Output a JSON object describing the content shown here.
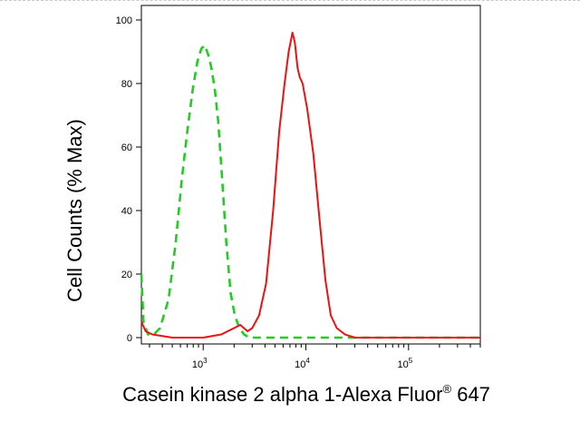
{
  "chart_data": {
    "type": "line",
    "title": "",
    "xlabel": "Casein kinase 2 alpha 1-Alexa Fluor",
    "xlabel_superscript": "®",
    "xlabel_suffix": " 647",
    "ylabel": "Cell Counts (% Max)",
    "x_scale": "log",
    "xlim": [
      250,
      500000
    ],
    "ylim": [
      0,
      100
    ],
    "y_ticks": [
      "0",
      "20",
      "40",
      "60",
      "80",
      "100"
    ],
    "x_ticks": [
      {
        "base": "10",
        "exp": "3",
        "value": 1000
      },
      {
        "base": "10",
        "exp": "4",
        "value": 10000
      },
      {
        "base": "10",
        "exp": "5",
        "value": 100000
      }
    ],
    "grid": false,
    "legend": "none",
    "series": [
      {
        "color": "#22cc22",
        "style": "dashed",
        "points": [
          [
            250,
            20
          ],
          [
            262,
            5
          ],
          [
            290,
            1
          ],
          [
            330,
            1
          ],
          [
            380,
            3
          ],
          [
            460,
            12
          ],
          [
            540,
            30
          ],
          [
            620,
            50
          ],
          [
            700,
            65
          ],
          [
            790,
            78
          ],
          [
            880,
            87
          ],
          [
            960,
            91
          ],
          [
            1040,
            92
          ],
          [
            1120,
            89
          ],
          [
            1200,
            85
          ],
          [
            1300,
            78
          ],
          [
            1400,
            68
          ],
          [
            1530,
            50
          ],
          [
            1680,
            30
          ],
          [
            1850,
            14
          ],
          [
            2030,
            7
          ],
          [
            2250,
            3
          ],
          [
            2500,
            1
          ],
          [
            2800,
            0
          ],
          [
            30000,
            0
          ],
          [
            500000,
            0
          ]
        ]
      },
      {
        "color": "#ee1111",
        "style": "solid",
        "points": [
          [
            250,
            5
          ],
          [
            275,
            2
          ],
          [
            320,
            1
          ],
          [
            500,
            0
          ],
          [
            1000,
            0
          ],
          [
            1500,
            1
          ],
          [
            2000,
            3
          ],
          [
            2300,
            4
          ],
          [
            2700,
            2
          ],
          [
            3000,
            3
          ],
          [
            3500,
            7
          ],
          [
            4100,
            17
          ],
          [
            4800,
            40
          ],
          [
            5500,
            65
          ],
          [
            6200,
            80
          ],
          [
            6800,
            90
          ],
          [
            7400,
            96
          ],
          [
            7800,
            93
          ],
          [
            8300,
            85
          ],
          [
            8700,
            82
          ],
          [
            9300,
            80
          ],
          [
            10300,
            72
          ],
          [
            11800,
            58
          ],
          [
            13500,
            38
          ],
          [
            15500,
            18
          ],
          [
            17500,
            7
          ],
          [
            20000,
            3
          ],
          [
            24000,
            1
          ],
          [
            30000,
            0
          ],
          [
            500000,
            0
          ]
        ]
      }
    ]
  }
}
